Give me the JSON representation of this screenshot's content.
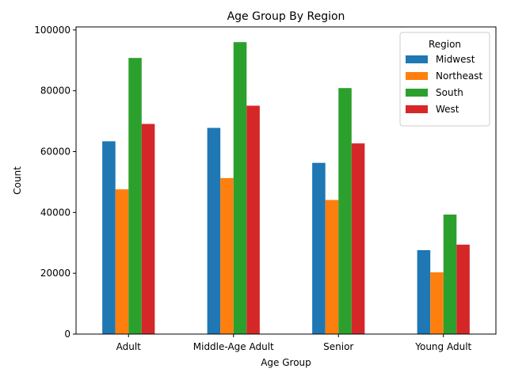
{
  "chart_data": {
    "type": "bar",
    "title": "Age Group By Region",
    "xlabel": "Age Group",
    "ylabel": "Count",
    "categories": [
      "Adult",
      "Middle-Age Adult",
      "Senior",
      "Young Adult"
    ],
    "series": [
      {
        "name": "Midwest",
        "color": "#1f77b4",
        "values": [
          63400,
          67800,
          56300,
          27600
        ]
      },
      {
        "name": "Northeast",
        "color": "#ff7f0e",
        "values": [
          47600,
          51300,
          44100,
          20300
        ]
      },
      {
        "name": "South",
        "color": "#2ca02c",
        "values": [
          90800,
          96000,
          80900,
          39300
        ]
      },
      {
        "name": "West",
        "color": "#d62728",
        "values": [
          69100,
          75100,
          62700,
          29400
        ]
      }
    ],
    "ylim": [
      0,
      101000
    ],
    "yticks": [
      0,
      20000,
      40000,
      60000,
      80000,
      100000
    ],
    "legend": {
      "title": "Region",
      "position": "top-right"
    },
    "grid": false
  }
}
